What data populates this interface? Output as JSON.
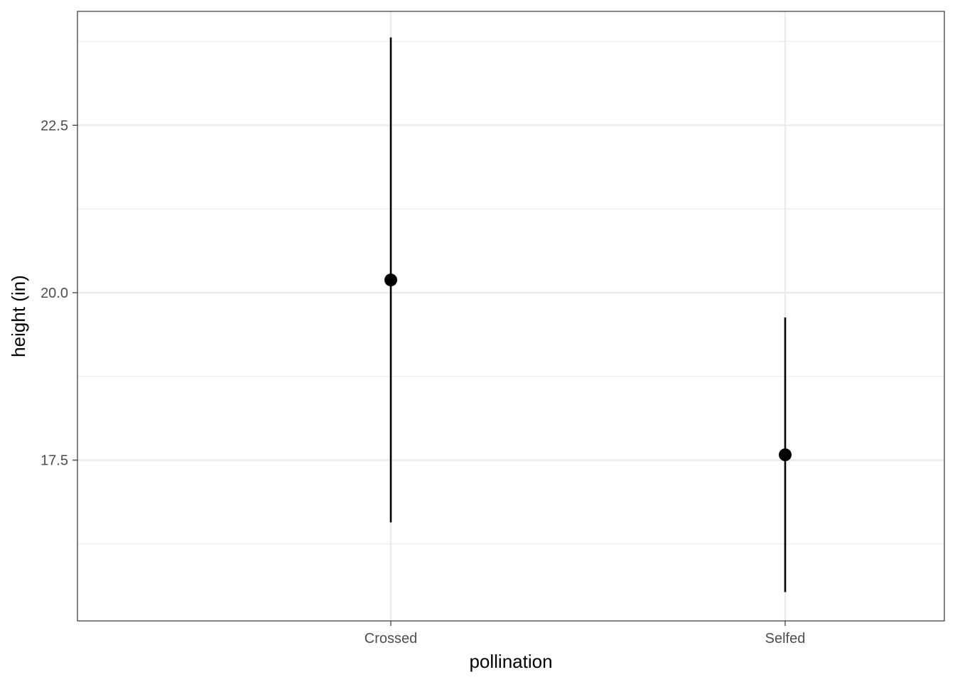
{
  "chart_data": {
    "type": "pointrange",
    "xlabel": "pollination",
    "ylabel": "height (in)",
    "categories": [
      "Crossed",
      "Selfed"
    ],
    "mean": [
      20.19,
      17.58
    ],
    "lower": [
      16.57,
      15.53
    ],
    "upper": [
      23.81,
      19.63
    ],
    "ylim": [
      15.1,
      24.2
    ],
    "yticks": [
      17.5,
      20.0,
      22.5
    ],
    "ytick_labels": [
      "17.5",
      "20.0",
      "22.5"
    ],
    "grid": true,
    "legend": "none",
    "colors": {
      "marks": "#000000",
      "grid": "#ebebeb",
      "panel_border": "#333333"
    }
  }
}
